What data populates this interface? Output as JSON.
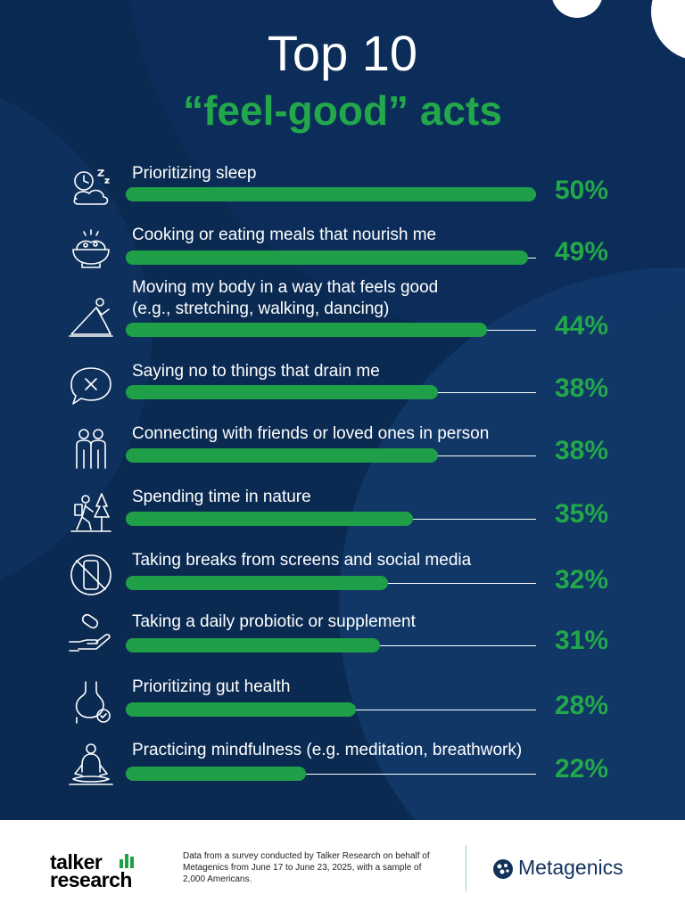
{
  "header": {
    "title": "Top 10",
    "subtitle": "“feel-good” acts"
  },
  "chart_data": {
    "type": "bar",
    "title": "Top 10 “feel-good” acts",
    "value_max": 100,
    "categories": [
      "Prioritizing sleep",
      "Cooking or eating meals that nourish me",
      "Moving my body in a way that feels good\n(e.g., stretching, walking, dancing)",
      "Saying no to things that drain me",
      "Connecting with friends or loved ones in person",
      "Spending time in nature",
      "Taking breaks from screens and social media",
      "Taking a daily probiotic or supplement",
      "Prioritizing gut health",
      "Practicing mindfulness (e.g. meditation, breathwork)"
    ],
    "values": [
      50,
      49,
      44,
      38,
      38,
      35,
      32,
      31,
      28,
      22
    ],
    "value_labels": [
      "50%",
      "49%",
      "44%",
      "38%",
      "38%",
      "35%",
      "32%",
      "31%",
      "28%",
      "22%"
    ],
    "icons": [
      "sleep-icon",
      "meal-bowl-icon",
      "yoga-icon",
      "speech-bubble-x-icon",
      "friends-icon",
      "hiking-icon",
      "no-phone-icon",
      "supplement-hand-icon",
      "stomach-icon",
      "meditation-icon"
    ],
    "bar_color": "#1fa048",
    "text_color": "#22a84a"
  },
  "footer": {
    "brand_left": "talker\nresearch",
    "note": "Data from a survey conducted by Talker Research on behalf of Metagenics from June 17 to June 23, 2025, with a sample of 2,000 Americans.",
    "brand_right": "Metagenics"
  }
}
